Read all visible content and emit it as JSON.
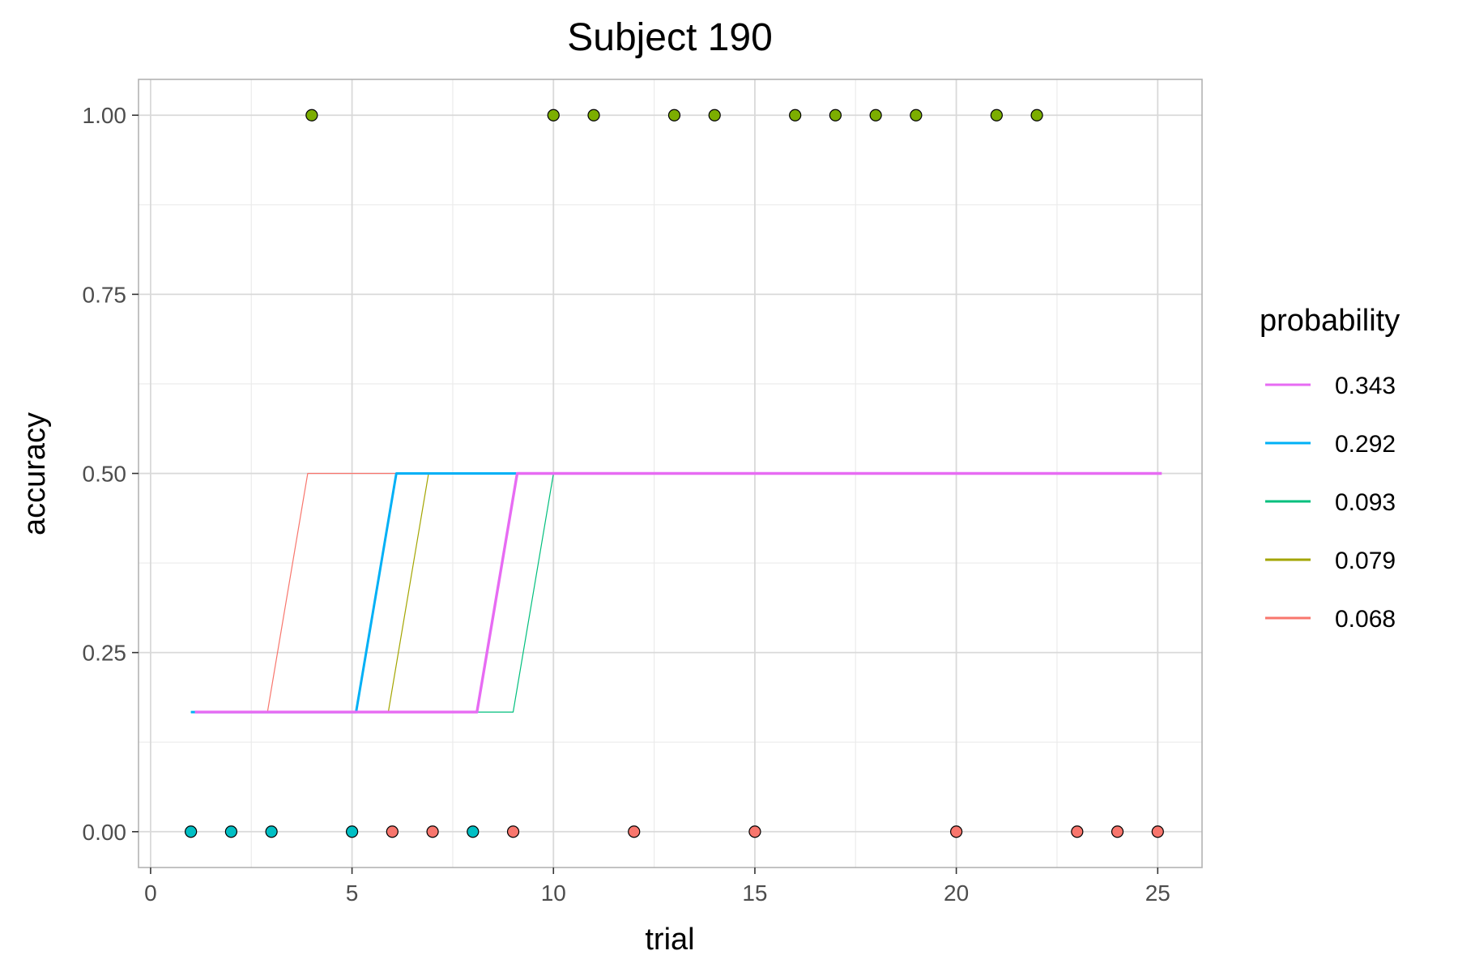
{
  "chart_data": {
    "type": "line",
    "title": "Subject 190",
    "xlabel": "trial",
    "ylabel": "accuracy",
    "xlim": [
      -0.3,
      26.1
    ],
    "ylim": [
      -0.05,
      1.05
    ],
    "x_ticks": [
      0,
      5,
      10,
      15,
      20,
      25
    ],
    "x_tick_labels": [
      "0",
      "5",
      "10",
      "15",
      "20",
      "25"
    ],
    "y_ticks": [
      0,
      0.25,
      0.5,
      0.75,
      1
    ],
    "y_tick_labels": [
      "0.00",
      "0.25",
      "0.50",
      "0.75",
      "1.00"
    ],
    "grid": true,
    "legend": {
      "title": "probability",
      "position": "right"
    },
    "series": [
      {
        "name": "0.068",
        "color": "#F8766D",
        "x": [
          1,
          2.9,
          3.9,
          25
        ],
        "y": [
          0.167,
          0.167,
          0.5,
          0.5
        ]
      },
      {
        "name": "0.079",
        "color": "#A3A500",
        "x": [
          1,
          5.9,
          6.9,
          25
        ],
        "y": [
          0.167,
          0.167,
          0.5,
          0.5
        ]
      },
      {
        "name": "0.093",
        "color": "#00BF7D",
        "x": [
          1,
          9,
          10,
          25
        ],
        "y": [
          0.167,
          0.167,
          0.5,
          0.5
        ]
      },
      {
        "name": "0.292",
        "color": "#00B0F6",
        "x": [
          1,
          5.1,
          6.1,
          25
        ],
        "y": [
          0.167,
          0.167,
          0.5,
          0.5
        ]
      },
      {
        "name": "0.343",
        "color": "#E76BF3",
        "x": [
          1.1,
          8.1,
          9.1,
          25.1
        ],
        "y": [
          0.167,
          0.167,
          0.5,
          0.5
        ]
      }
    ],
    "legend_order": [
      "0.343",
      "0.292",
      "0.093",
      "0.079",
      "0.068"
    ],
    "points": [
      {
        "x": 1,
        "y": 0,
        "color": "#00BFC4"
      },
      {
        "x": 2,
        "y": 0,
        "color": "#00BFC4"
      },
      {
        "x": 3,
        "y": 0,
        "color": "#00BFC4"
      },
      {
        "x": 4,
        "y": 1,
        "color": "#7CAE00"
      },
      {
        "x": 5,
        "y": 0,
        "color": "#00BFC4"
      },
      {
        "x": 6,
        "y": 0,
        "color": "#F8766D"
      },
      {
        "x": 7,
        "y": 0,
        "color": "#F8766D"
      },
      {
        "x": 8,
        "y": 0,
        "color": "#00BFC4"
      },
      {
        "x": 9,
        "y": 0,
        "color": "#F8766D"
      },
      {
        "x": 10,
        "y": 1,
        "color": "#7CAE00"
      },
      {
        "x": 11,
        "y": 1,
        "color": "#7CAE00"
      },
      {
        "x": 12,
        "y": 0,
        "color": "#F8766D"
      },
      {
        "x": 13,
        "y": 1,
        "color": "#7CAE00"
      },
      {
        "x": 14,
        "y": 1,
        "color": "#7CAE00"
      },
      {
        "x": 15,
        "y": 0,
        "color": "#F8766D"
      },
      {
        "x": 16,
        "y": 1,
        "color": "#7CAE00"
      },
      {
        "x": 17,
        "y": 1,
        "color": "#7CAE00"
      },
      {
        "x": 18,
        "y": 1,
        "color": "#7CAE00"
      },
      {
        "x": 19,
        "y": 1,
        "color": "#7CAE00"
      },
      {
        "x": 20,
        "y": 0,
        "color": "#F8766D"
      },
      {
        "x": 21,
        "y": 1,
        "color": "#7CAE00"
      },
      {
        "x": 22,
        "y": 1,
        "color": "#7CAE00"
      },
      {
        "x": 23,
        "y": 0,
        "color": "#F8766D"
      },
      {
        "x": 24,
        "y": 0,
        "color": "#F8766D"
      },
      {
        "x": 25,
        "y": 0,
        "color": "#F8766D"
      }
    ]
  }
}
